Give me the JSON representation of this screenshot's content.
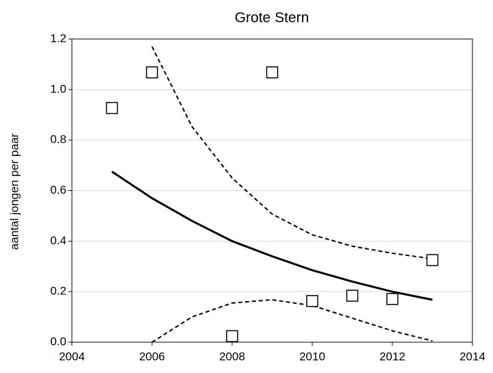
{
  "chart_data": {
    "type": "scatter",
    "title": "Grote Stern",
    "y_label": "aantal jongen per paar",
    "xlim": [
      2004,
      2014
    ],
    "xticks": [
      2004,
      2006,
      2008,
      2010,
      2012,
      2014
    ],
    "ylim": [
      0,
      1.2
    ],
    "yticks": [
      {
        "value": 0,
        "label": "0.0"
      },
      {
        "value": 0.2,
        "label": "0.2"
      },
      {
        "value": 0.4,
        "label": "0.4"
      },
      {
        "value": 0.6,
        "label": "0.6"
      },
      {
        "value": 0.8,
        "label": "0.8"
      },
      {
        "value": 1.0,
        "label": "1.0"
      },
      {
        "value": 1.2,
        "label": "1.2"
      }
    ],
    "grid": true,
    "series": [
      {
        "type": "scatter",
        "marker": "square",
        "color": "#000000",
        "x": [
          2005,
          2006,
          2008,
          2009,
          2010,
          2011,
          2012,
          2013
        ],
        "values": [
          0.927,
          1.068,
          0.024,
          1.068,
          0.163,
          0.184,
          0.171,
          0.325
        ]
      },
      {
        "type": "line",
        "dashed": false,
        "color": "#000000",
        "x": [
          2005,
          2006,
          2007,
          2008,
          2009,
          2010,
          2011,
          2012,
          2013
        ],
        "values": [
          0.675,
          0.57,
          0.48,
          0.4,
          0.34,
          0.285,
          0.24,
          0.2,
          0.168
        ]
      },
      {
        "type": "line",
        "dashed": true,
        "color": "#000000",
        "x": [
          2006,
          2007,
          2008,
          2009,
          2010,
          2011,
          2012,
          2013
        ],
        "values": [
          1.17,
          0.853,
          0.65,
          0.507,
          0.425,
          0.38,
          0.352,
          0.33
        ]
      },
      {
        "type": "line",
        "dashed": true,
        "color": "#000000",
        "x": [
          2006,
          2007,
          2008,
          2009,
          2010,
          2011,
          2012,
          2013
        ],
        "values": [
          0.0,
          0.1,
          0.155,
          0.168,
          0.145,
          0.095,
          0.045,
          0.005
        ]
      }
    ]
  }
}
